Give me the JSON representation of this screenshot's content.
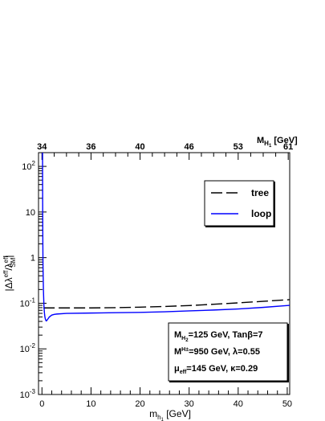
{
  "chart_data": {
    "type": "line",
    "xlabel": "m_{h_1} [GeV]",
    "ylabel": "|Δλ^{eff}/λ^{eff}_{SM}|",
    "top_axis_label": "M_{H_1} [GeV]",
    "xlim": [
      -0.7,
      50.5
    ],
    "ylim": [
      0.001,
      200
    ],
    "yscale": "log",
    "x_ticks": [
      {
        "value": 0,
        "label": "0"
      },
      {
        "value": 10,
        "label": "10"
      },
      {
        "value": 20,
        "label": "20"
      },
      {
        "value": 30,
        "label": "30"
      },
      {
        "value": 40,
        "label": "40"
      },
      {
        "value": 50,
        "label": "50"
      }
    ],
    "y_ticks": [
      {
        "value": 0.001,
        "base": "10",
        "exp": "-3"
      },
      {
        "value": 0.01,
        "base": "10",
        "exp": "-2"
      },
      {
        "value": 0.1,
        "base": "10",
        "exp": "-1"
      },
      {
        "value": 1,
        "base": "1",
        "exp": ""
      },
      {
        "value": 10,
        "base": "10",
        "exp": ""
      },
      {
        "value": 100,
        "base": "10",
        "exp": "2"
      }
    ],
    "top_ticks": [
      {
        "x": 0.0,
        "label": "34"
      },
      {
        "x": 10.0,
        "label": "36"
      },
      {
        "x": 20.0,
        "label": "40"
      },
      {
        "x": 30.0,
        "label": "46"
      },
      {
        "x": 40.0,
        "label": "53"
      },
      {
        "x": 50.2,
        "label": "61"
      }
    ],
    "series": [
      {
        "name": "tree",
        "style": "dashed",
        "color": "#000000",
        "x": [
          0.3,
          5,
          10,
          15,
          20,
          25,
          30,
          35,
          40,
          45,
          50.5
        ],
        "y": [
          0.079,
          0.079,
          0.079,
          0.08,
          0.082,
          0.085,
          0.089,
          0.095,
          0.102,
          0.11,
          0.12
        ]
      },
      {
        "name": "loop",
        "style": "solid",
        "color": "#0000ff",
        "x": [
          0.12,
          0.13,
          0.15,
          0.18,
          0.22,
          0.3,
          0.4,
          0.5,
          0.6,
          0.7,
          0.8,
          0.9,
          1.0,
          1.2,
          1.5,
          2.0,
          2.5,
          3,
          5,
          10,
          15,
          20,
          25,
          30,
          35,
          40,
          45,
          50.5
        ],
        "y": [
          200,
          50,
          10,
          2.0,
          0.6,
          0.2,
          0.09,
          0.062,
          0.05,
          0.045,
          0.042,
          0.041,
          0.042,
          0.045,
          0.05,
          0.055,
          0.057,
          0.058,
          0.06,
          0.061,
          0.062,
          0.063,
          0.065,
          0.068,
          0.071,
          0.075,
          0.081,
          0.09
        ]
      }
    ],
    "legend": {
      "position": "top-right",
      "entries": [
        {
          "label": "tree",
          "style": "dashed",
          "color": "#000000"
        },
        {
          "label": "loop",
          "style": "solid",
          "color": "#0000ff"
        }
      ]
    },
    "annotations": [
      {
        "text": "M_{H_2}=125 GeV, Tanβ=7"
      },
      {
        "text": "M_{H^±}=950 GeV, λ=0.55"
      },
      {
        "text": "μ_{eff}=145 GeV, κ=0.29"
      }
    ],
    "grid": false
  }
}
